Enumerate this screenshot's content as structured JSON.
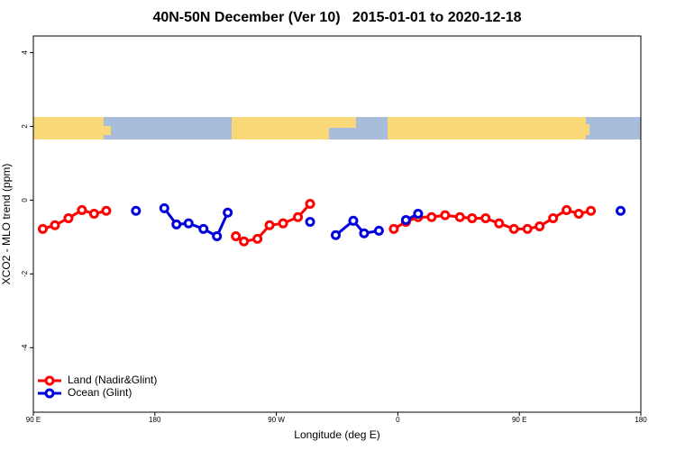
{
  "chart_data": {
    "type": "line",
    "title": "40N-50N December (Ver 10)   2015-01-01 to 2020-12-18",
    "x_label": "Longitude (deg E)",
    "y_label": "XCO2 - MLO trend (ppm)",
    "xlim": [
      90,
      540
    ],
    "ylim": [
      -5.75,
      4.45
    ],
    "xticks": [
      {
        "value": 90,
        "label": "90 E"
      },
      180,
      {
        "value": 270,
        "label": "90 W"
      },
      {
        "value": 360,
        "label": "0"
      },
      {
        "value": 450,
        "label": "90 E"
      },
      {
        "value": 540,
        "label": "180"
      }
    ],
    "yticks": [
      -4,
      -2,
      0,
      2,
      4
    ],
    "legend": "bottom-left",
    "series": [
      {
        "name": "Land (Nadir&Glint)",
        "color": "#ff0000",
        "x": [
          97,
          106,
          116,
          126,
          135,
          144,
          null,
          240,
          246,
          256,
          265,
          275,
          286,
          295,
          null,
          357,
          366,
          375,
          385,
          395,
          406,
          415,
          425,
          435,
          446,
          456,
          465,
          475,
          485,
          494,
          503
        ],
        "values": [
          -0.78,
          -0.68,
          -0.49,
          -0.27,
          -0.37,
          -0.29,
          null,
          -0.98,
          -1.12,
          -1.05,
          -0.68,
          -0.63,
          -0.46,
          -0.1,
          null,
          -0.78,
          -0.59,
          -0.46,
          -0.46,
          -0.41,
          -0.46,
          -0.49,
          -0.49,
          -0.63,
          -0.78,
          -0.78,
          -0.71,
          -0.49,
          -0.27,
          -0.37,
          -0.29
        ]
      },
      {
        "name": "Ocean (Glint)",
        "color": "#0000dd",
        "x": [
          166,
          null,
          187,
          196,
          205,
          216,
          226,
          234,
          null,
          295,
          null,
          314,
          327,
          335,
          346,
          null,
          366,
          375,
          null,
          525
        ],
        "values": [
          -0.29,
          null,
          -0.22,
          -0.66,
          -0.63,
          -0.78,
          -0.98,
          -0.34,
          null,
          -0.59,
          null,
          -0.95,
          -0.56,
          -0.9,
          -0.83,
          null,
          -0.54,
          -0.37,
          null,
          -0.29
        ]
      }
    ]
  }
}
